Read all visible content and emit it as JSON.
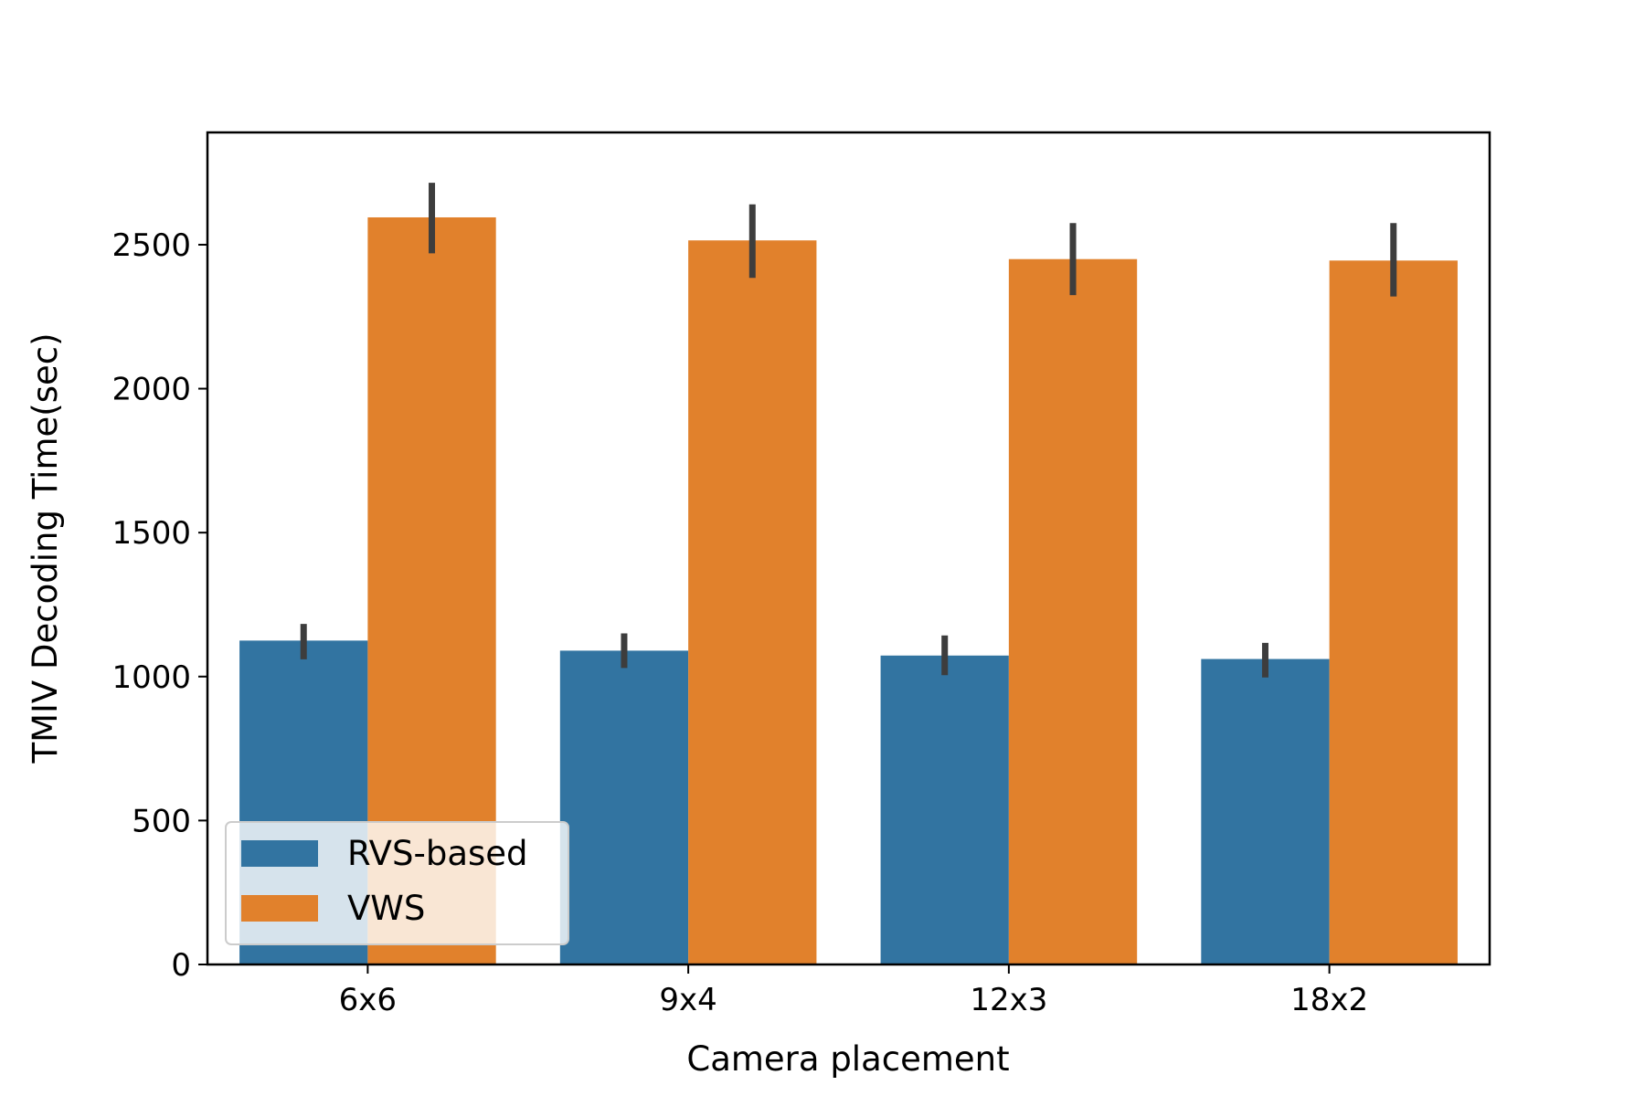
{
  "chart_data": {
    "type": "bar",
    "title": "",
    "xlabel": "Camera placement",
    "ylabel": "TMIV Decoding Time(sec)",
    "categories": [
      "6x6",
      "9x4",
      "12x3",
      "18x2"
    ],
    "ylim": [
      0,
      2890
    ],
    "yticks": [
      0,
      500,
      1000,
      1500,
      2000,
      2500
    ],
    "grid": false,
    "legend_position": "lower-left",
    "series": [
      {
        "name": "RVS-based",
        "color": "#3274a1",
        "values": [
          1125,
          1090,
          1073,
          1061
        ],
        "err_low": [
          1060,
          1030,
          1005,
          997
        ],
        "err_high": [
          1183,
          1150,
          1143,
          1117
        ]
      },
      {
        "name": "VWS",
        "color": "#e1812c",
        "values": [
          2595,
          2515,
          2450,
          2445
        ],
        "err_low": [
          2470,
          2385,
          2325,
          2320
        ],
        "err_high": [
          2715,
          2640,
          2575,
          2575
        ]
      }
    ]
  }
}
